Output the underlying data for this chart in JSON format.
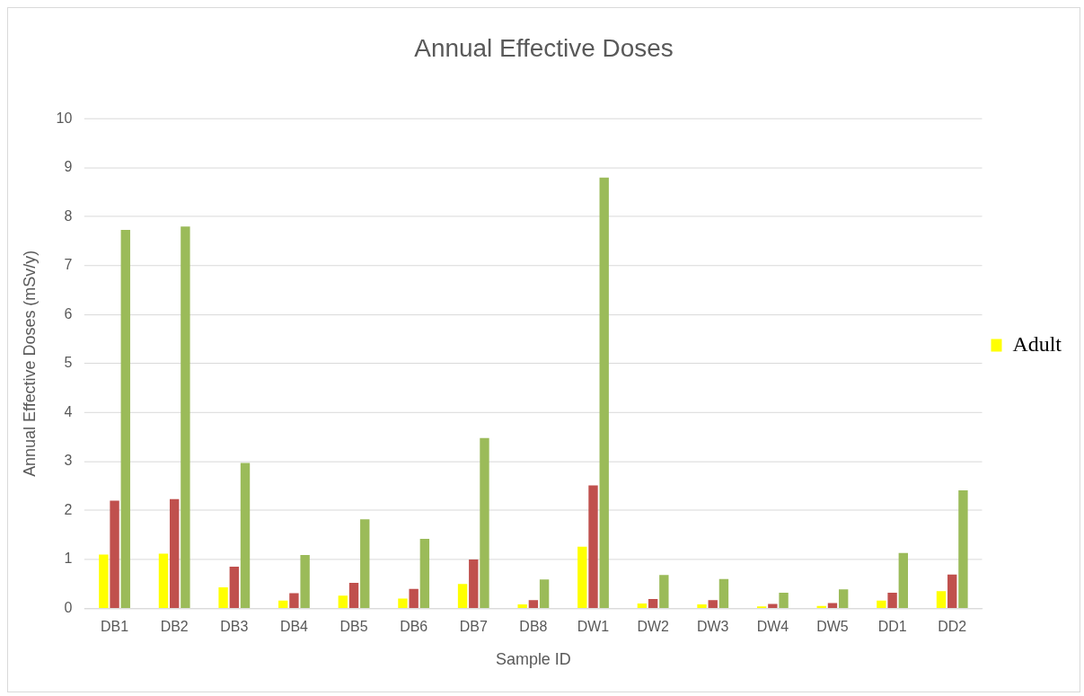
{
  "chart_data": {
    "type": "bar",
    "title": "Annual Effective Doses",
    "xlabel": "Sample ID",
    "ylabel": "Annual Effective Doses (mSv/y)",
    "categories": [
      "DB1",
      "DB2",
      "DB3",
      "DB4",
      "DB5",
      "DB6",
      "DB7",
      "DB8",
      "DW1",
      "DW2",
      "DW3",
      "DW4",
      "DW5",
      "DD1",
      "DD2"
    ],
    "series": [
      {
        "name": "Adult",
        "color": "#ffff00",
        "values": [
          1.1,
          1.12,
          0.43,
          0.16,
          0.26,
          0.2,
          0.5,
          0.08,
          1.26,
          0.1,
          0.08,
          0.04,
          0.05,
          0.16,
          0.35
        ]
      },
      {
        "color": "#c0504d",
        "values": [
          2.2,
          2.23,
          0.85,
          0.31,
          0.52,
          0.4,
          1.0,
          0.17,
          2.51,
          0.19,
          0.17,
          0.09,
          0.11,
          0.32,
          0.69
        ]
      },
      {
        "color": "#9bbb59",
        "values": [
          7.73,
          7.8,
          2.97,
          1.09,
          1.82,
          1.42,
          3.48,
          0.59,
          8.8,
          0.68,
          0.6,
          0.32,
          0.39,
          1.13,
          2.41
        ]
      }
    ],
    "ylim": [
      0,
      10
    ],
    "yticks": [
      0,
      1,
      2,
      3,
      4,
      5,
      6,
      7,
      8,
      9,
      10
    ],
    "grid": "y",
    "legend": "right"
  }
}
